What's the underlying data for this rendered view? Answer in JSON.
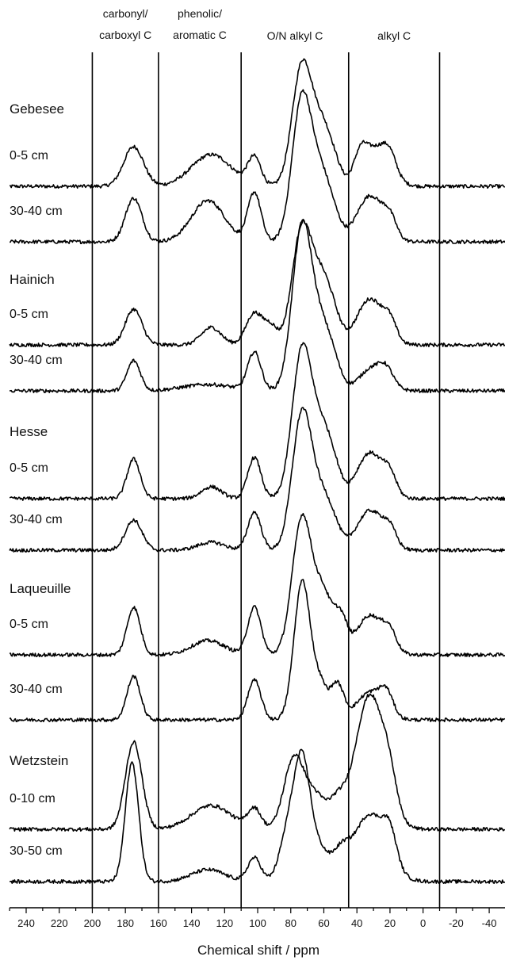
{
  "chart_data": {
    "type": "line",
    "title": "",
    "xlabel": "Chemical shift / ppm",
    "ylabel": "",
    "xlim": [
      250,
      -50
    ],
    "x_reversed": true,
    "x_ticks": [
      240,
      220,
      200,
      180,
      160,
      140,
      120,
      100,
      80,
      60,
      40,
      20,
      0,
      -20,
      -40
    ],
    "x_tick_labels": [
      "240",
      "220",
      "200",
      "180",
      "160",
      "140",
      "120",
      "100",
      "80",
      "60",
      "40",
      "20",
      "0",
      "-20",
      "-40"
    ],
    "region_boundaries": [
      200,
      160,
      110,
      45,
      -10
    ],
    "regions": [
      {
        "label_lines": [
          "carbonyl/",
          "carboxyl C"
        ],
        "from": 200,
        "to": 160
      },
      {
        "label_lines": [
          "phenolic/",
          "aromatic C"
        ],
        "from": 160,
        "to": 110
      },
      {
        "label_lines": [
          "O/N alkyl C"
        ],
        "from": 110,
        "to": 45
      },
      {
        "label_lines": [
          "alkyl C"
        ],
        "from": 45,
        "to": -10
      }
    ],
    "sites": [
      "Gebesee",
      "Hainich",
      "Hesse",
      "Laqueuille",
      "Wetzstein"
    ],
    "series": [
      {
        "site": "Gebesee",
        "depth": "0-5 cm",
        "peaks": [
          [
            175,
            6,
            50
          ],
          [
            128,
            12,
            40
          ],
          [
            102,
            4,
            35
          ],
          [
            73,
            6,
            155
          ],
          [
            62,
            5,
            55
          ],
          [
            55,
            5,
            35
          ],
          [
            38,
            4,
            30
          ],
          [
            28,
            8,
            48
          ],
          [
            20,
            4,
            20
          ]
        ]
      },
      {
        "site": "Gebesee",
        "depth": "30-40 cm",
        "peaks": [
          [
            175,
            5,
            55
          ],
          [
            130,
            10,
            52
          ],
          [
            102,
            4,
            62
          ],
          [
            73,
            6,
            185
          ],
          [
            62,
            5,
            60
          ],
          [
            55,
            5,
            35
          ],
          [
            32,
            8,
            58
          ],
          [
            20,
            4,
            22
          ]
        ]
      },
      {
        "site": "Hainich",
        "depth": "0-5 cm",
        "peaks": [
          [
            175,
            5,
            45
          ],
          [
            128,
            6,
            22
          ],
          [
            102,
            5,
            40
          ],
          [
            92,
            4,
            22
          ],
          [
            73,
            6,
            150
          ],
          [
            62,
            5,
            60
          ],
          [
            55,
            5,
            40
          ],
          [
            32,
            8,
            58
          ],
          [
            20,
            4,
            22
          ]
        ]
      },
      {
        "site": "Hainich",
        "depth": "30-40 cm",
        "peaks": [
          [
            175,
            4,
            38
          ],
          [
            130,
            15,
            8
          ],
          [
            102,
            4,
            48
          ],
          [
            73,
            6,
            210
          ],
          [
            62,
            5,
            55
          ],
          [
            55,
            5,
            40
          ],
          [
            30,
            8,
            30
          ],
          [
            22,
            4,
            15
          ]
        ]
      },
      {
        "site": "Hesse",
        "depth": "0-5 cm",
        "peaks": [
          [
            175,
            4,
            50
          ],
          [
            128,
            6,
            15
          ],
          [
            102,
            4,
            52
          ],
          [
            73,
            6,
            190
          ],
          [
            62,
            5,
            60
          ],
          [
            55,
            5,
            45
          ],
          [
            32,
            8,
            58
          ],
          [
            20,
            4,
            22
          ]
        ]
      },
      {
        "site": "Hesse",
        "depth": "30-40 cm",
        "peaks": [
          [
            175,
            5,
            38
          ],
          [
            128,
            8,
            10
          ],
          [
            102,
            4,
            48
          ],
          [
            73,
            6,
            175
          ],
          [
            62,
            5,
            45
          ],
          [
            55,
            5,
            35
          ],
          [
            32,
            8,
            50
          ],
          [
            20,
            4,
            20
          ]
        ]
      },
      {
        "site": "Laqueuille",
        "depth": "0-5 cm",
        "peaks": [
          [
            175,
            4,
            60
          ],
          [
            130,
            10,
            18
          ],
          [
            102,
            4,
            60
          ],
          [
            73,
            6,
            175
          ],
          [
            60,
            5,
            70
          ],
          [
            50,
            4,
            45
          ],
          [
            32,
            8,
            50
          ],
          [
            20,
            4,
            22
          ]
        ]
      },
      {
        "site": "Laqueuille",
        "depth": "30-40 cm",
        "peaks": [
          [
            175,
            4,
            55
          ],
          [
            102,
            4,
            50
          ],
          [
            73,
            5,
            175
          ],
          [
            62,
            4,
            40
          ],
          [
            52,
            4,
            45
          ],
          [
            32,
            8,
            35
          ],
          [
            22,
            4,
            25
          ]
        ]
      },
      {
        "site": "Wetzstein",
        "depth": "0-10 cm",
        "peaks": [
          [
            175,
            5,
            110
          ],
          [
            128,
            12,
            30
          ],
          [
            102,
            4,
            25
          ],
          [
            78,
            6,
            90
          ],
          [
            65,
            6,
            40
          ],
          [
            52,
            5,
            30
          ],
          [
            32,
            9,
            170
          ],
          [
            20,
            4,
            30
          ]
        ]
      },
      {
        "site": "Wetzstein",
        "depth": "30-50 cm",
        "peaks": [
          [
            176,
            4,
            150
          ],
          [
            130,
            10,
            15
          ],
          [
            102,
            4,
            30
          ],
          [
            82,
            5,
            55
          ],
          [
            73,
            5,
            150
          ],
          [
            62,
            5,
            35
          ],
          [
            50,
            5,
            30
          ],
          [
            32,
            10,
            85
          ],
          [
            20,
            4,
            35
          ]
        ]
      }
    ]
  }
}
